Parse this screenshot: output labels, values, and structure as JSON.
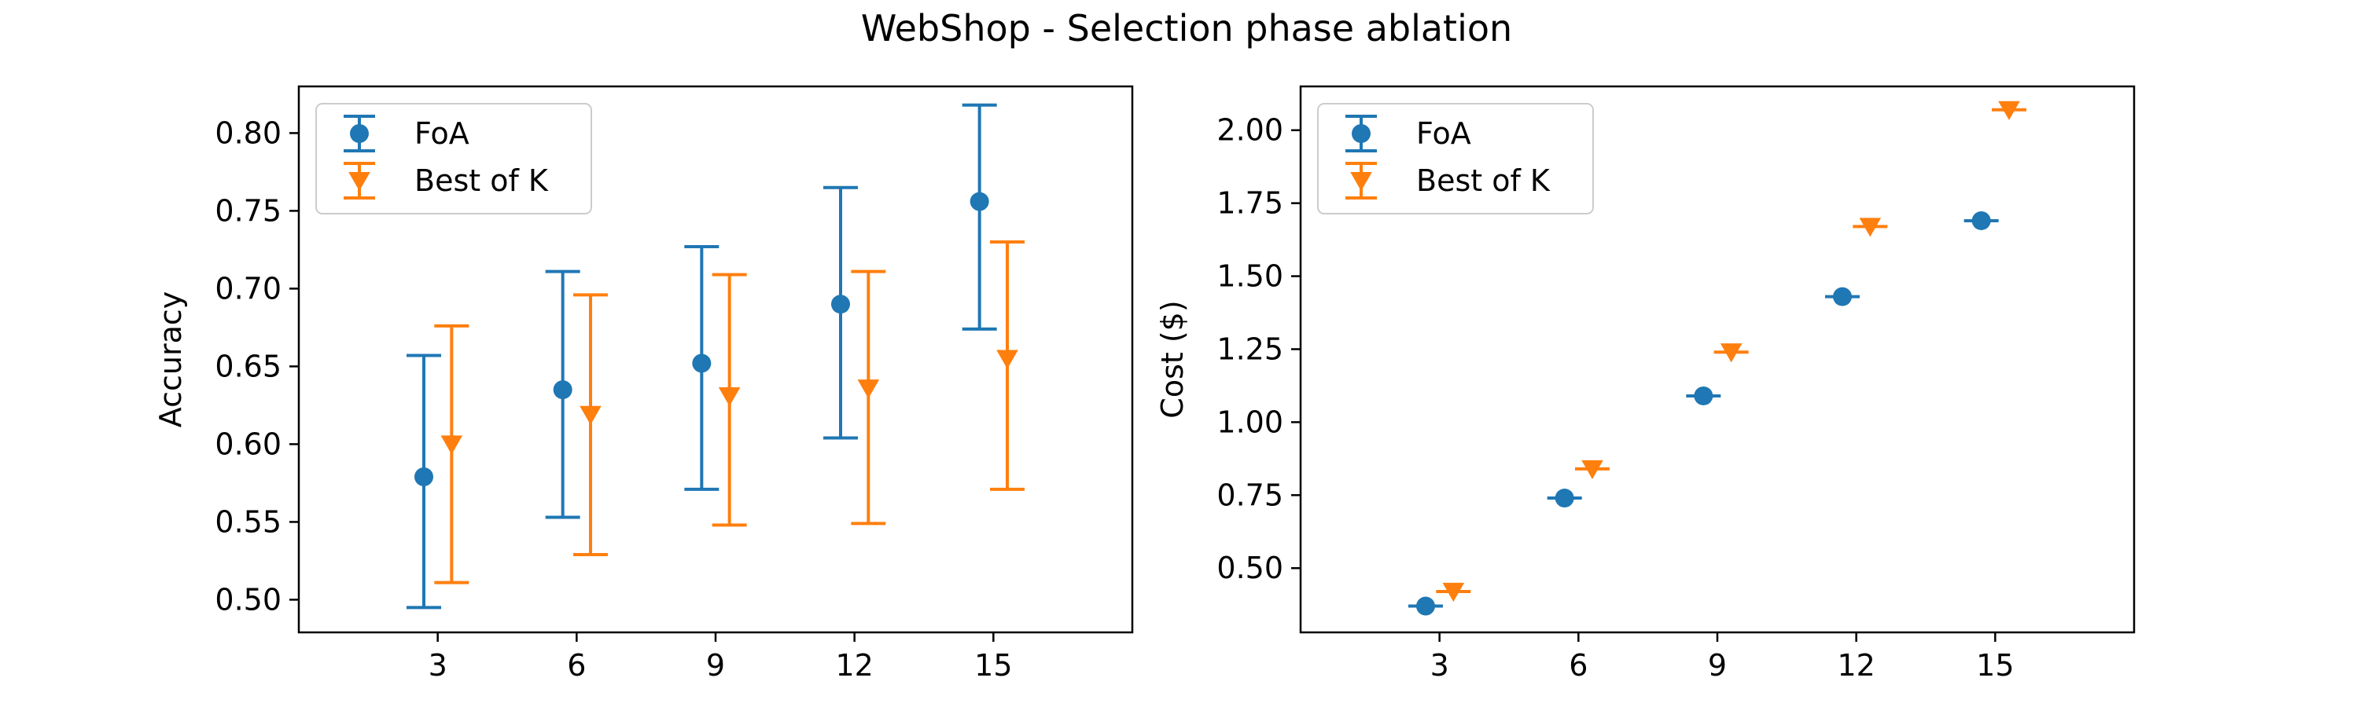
{
  "figure": {
    "title": "WebShop - Selection phase ablation"
  },
  "colors": {
    "foa": "#1f77b4",
    "best_of_k": "#ff7f0e"
  },
  "chart_data": [
    {
      "type": "scatter",
      "title": "",
      "xlabel": "",
      "ylabel": "Accuracy",
      "x_ticks": [
        3,
        6,
        9,
        12,
        15
      ],
      "x_tick_labels": [
        "3",
        "6",
        "9",
        "12",
        "15"
      ],
      "xlim": [
        0,
        18
      ],
      "ylim": [
        0.479,
        0.83
      ],
      "y_ticks": [
        0.5,
        0.55,
        0.6,
        0.65,
        0.7,
        0.75,
        0.8
      ],
      "y_tick_labels": [
        "0.50",
        "0.55",
        "0.60",
        "0.65",
        "0.70",
        "0.75",
        "0.80"
      ],
      "legend_position": "upper-left",
      "grid": false,
      "series": [
        {
          "name": "FoA",
          "marker": "circle",
          "x": [
            2.7,
            5.7,
            8.7,
            11.7,
            14.7
          ],
          "y": [
            0.579,
            0.635,
            0.652,
            0.69,
            0.756
          ],
          "err_low": [
            0.495,
            0.553,
            0.571,
            0.604,
            0.674
          ],
          "err_high": [
            0.657,
            0.711,
            0.727,
            0.765,
            0.818
          ]
        },
        {
          "name": "Best of K",
          "marker": "triangle-down",
          "x": [
            3.3,
            6.3,
            9.3,
            12.3,
            15.3
          ],
          "y": [
            0.6,
            0.619,
            0.631,
            0.636,
            0.655
          ],
          "err_low": [
            0.511,
            0.529,
            0.548,
            0.549,
            0.571
          ],
          "err_high": [
            0.676,
            0.696,
            0.709,
            0.711,
            0.73
          ]
        }
      ]
    },
    {
      "type": "scatter",
      "title": "",
      "xlabel": "",
      "ylabel": "Cost ($)",
      "x_ticks": [
        3,
        6,
        9,
        12,
        15
      ],
      "x_tick_labels": [
        "3",
        "6",
        "9",
        "12",
        "15"
      ],
      "xlim": [
        0,
        18
      ],
      "ylim": [
        0.28,
        2.15
      ],
      "y_ticks": [
        0.5,
        0.75,
        1.0,
        1.25,
        1.5,
        1.75,
        2.0
      ],
      "y_tick_labels": [
        "0.50",
        "0.75",
        "1.00",
        "1.25",
        "1.50",
        "1.75",
        "2.00"
      ],
      "legend_position": "upper-left",
      "grid": false,
      "series": [
        {
          "name": "FoA",
          "marker": "circle",
          "x": [
            2.7,
            5.7,
            8.7,
            11.7,
            14.7
          ],
          "y": [
            0.37,
            0.74,
            1.09,
            1.43,
            1.69
          ],
          "err_low": [
            0.37,
            0.74,
            1.09,
            1.43,
            1.69
          ],
          "err_high": [
            0.37,
            0.74,
            1.09,
            1.43,
            1.69
          ]
        },
        {
          "name": "Best of K",
          "marker": "triangle-down",
          "x": [
            3.3,
            6.3,
            9.3,
            12.3,
            15.3
          ],
          "y": [
            0.42,
            0.84,
            1.24,
            1.67,
            2.07
          ],
          "err_low": [
            0.42,
            0.84,
            1.24,
            1.67,
            2.07
          ],
          "err_high": [
            0.42,
            0.84,
            1.24,
            1.67,
            2.07
          ]
        }
      ]
    }
  ]
}
